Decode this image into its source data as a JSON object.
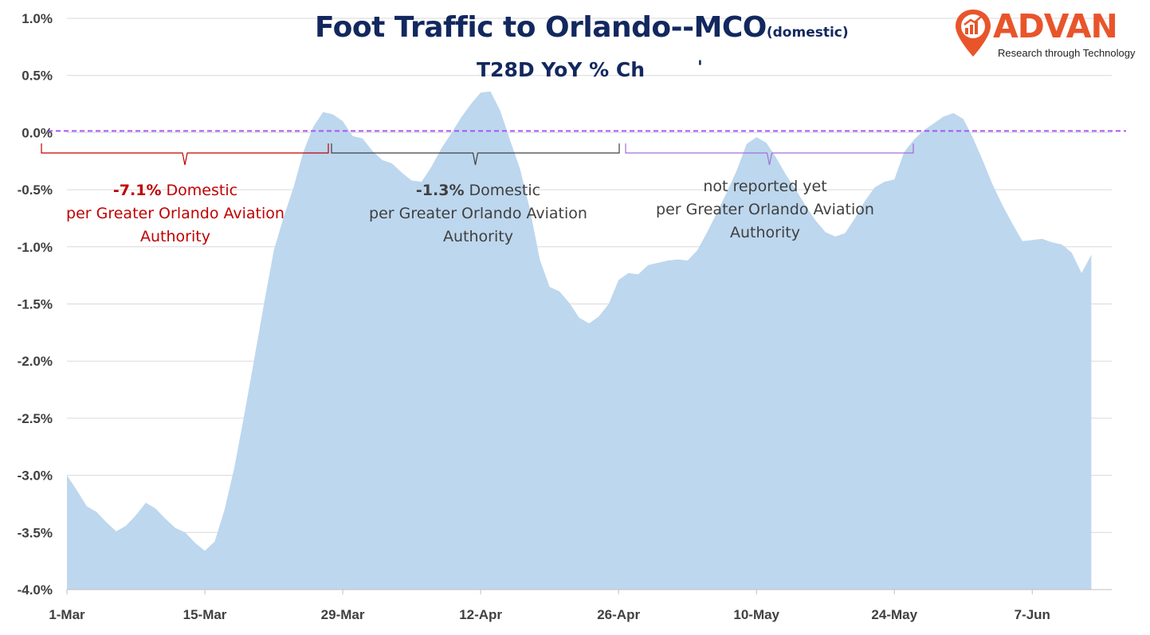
{
  "chart_data": {
    "type": "area",
    "title": "Foot Traffic to Orlando--MCO",
    "title_suffix": "(domestic)",
    "subtitle": "T28D YoY % Ch",
    "subtitle_mark": "'",
    "xlabel": "",
    "ylabel": "",
    "ylim": [
      -4.0,
      1.0
    ],
    "y_ticks": [
      1.0,
      0.5,
      0.0,
      -0.5,
      -1.0,
      -1.5,
      -2.0,
      -2.5,
      -3.0,
      -3.5,
      -4.0
    ],
    "y_tick_labels": [
      "1.0%",
      "0.5%",
      "0.0%",
      "-0.5%",
      "-1.0%",
      "-1.5%",
      "-2.0%",
      "-2.5%",
      "-3.0%",
      "-3.5%",
      "-4.0%"
    ],
    "x_tick_labels": [
      "1-Mar",
      "15-Mar",
      "29-Mar",
      "12-Apr",
      "26-Apr",
      "10-May",
      "24-May",
      "7-Jun"
    ],
    "x_start_label": "1-Mar",
    "grid": true,
    "area_color": "#bdd7ee",
    "reference_line": {
      "value": 0.0,
      "color": "#a855f7",
      "style": "dashed"
    },
    "values": [
      -3.0,
      -3.13,
      -3.27,
      -3.32,
      -3.41,
      -3.49,
      -3.44,
      -3.35,
      -3.24,
      -3.29,
      -3.38,
      -3.46,
      -3.5,
      -3.59,
      -3.66,
      -3.58,
      -3.3,
      -2.93,
      -2.47,
      -1.99,
      -1.5,
      -1.03,
      -0.74,
      -0.48,
      -0.17,
      0.05,
      0.18,
      0.16,
      0.1,
      -0.03,
      -0.05,
      -0.16,
      -0.24,
      -0.27,
      -0.35,
      -0.42,
      -0.43,
      -0.3,
      -0.14,
      -0.01,
      0.13,
      0.25,
      0.35,
      0.36,
      0.19,
      -0.07,
      -0.32,
      -0.67,
      -1.11,
      -1.35,
      -1.39,
      -1.49,
      -1.62,
      -1.67,
      -1.61,
      -1.5,
      -1.29,
      -1.23,
      -1.24,
      -1.16,
      -1.14,
      -1.12,
      -1.11,
      -1.12,
      -1.03,
      -0.87,
      -0.7,
      -0.52,
      -0.33,
      -0.1,
      -0.04,
      -0.09,
      -0.22,
      -0.37,
      -0.5,
      -0.64,
      -0.77,
      -0.87,
      -0.91,
      -0.88,
      -0.75,
      -0.6,
      -0.48,
      -0.43,
      -0.41,
      -0.17,
      -0.06,
      0.02,
      0.08,
      0.14,
      0.17,
      0.12,
      -0.05,
      -0.25,
      -0.46,
      -0.64,
      -0.8,
      -0.95,
      -0.94,
      -0.93,
      -0.96,
      -0.98,
      -1.05,
      -1.23,
      -1.07
    ]
  },
  "annotations": {
    "red": {
      "value": "-7.1%",
      "line1_rest": " Domestic",
      "line2": "per Greater Orlando Aviation",
      "line3": "Authority",
      "color": "#c00000"
    },
    "grey": {
      "value": "-1.3%",
      "line1_rest": " Domestic",
      "line2": "per Greater Orlando Aviation",
      "line3": "Authority",
      "color": "#404040"
    },
    "purple": {
      "line1": "not reported yet",
      "line2": "per Greater Orlando Aviation",
      "line3": "Authority",
      "color": "#a36fd6"
    }
  },
  "logo": {
    "wordmark": "ADVAN",
    "tagline": "Research through Technology",
    "color": "#e8552b",
    "icon": "map-pin-chart-icon"
  }
}
